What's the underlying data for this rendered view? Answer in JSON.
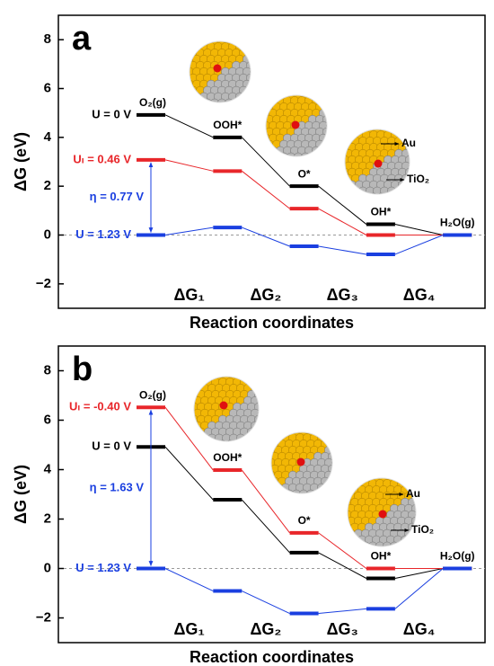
{
  "chart_data": [
    {
      "type": "step",
      "panel_label": "a",
      "ylabel": "ΔG (eV)",
      "xlabel": "Reaction coordinates",
      "ylim": [
        -3,
        9
      ],
      "yticks": [
        {
          "value": -2,
          "label": "−2"
        },
        0,
        2,
        4,
        6,
        8
      ],
      "states": [
        "O₂(g)",
        "OOH*",
        "O*",
        "OH*",
        "H₂O(g)"
      ],
      "steps": [
        "ΔG₁",
        "ΔG₂",
        "ΔG₃",
        "ΔG₄"
      ],
      "series": [
        {
          "name": "U = 0 V",
          "color": "#000000",
          "values": [
            4.92,
            4.0,
            2.0,
            0.44,
            0
          ]
        },
        {
          "name": "Uₗ = 0.46 V",
          "color": "#e8262a",
          "values": [
            3.08,
            2.62,
            1.08,
            0,
            0
          ]
        },
        {
          "name": "U = 1.23 V",
          "color": "#1a3fe0",
          "values": [
            0,
            0.31,
            -0.46,
            -0.79,
            0
          ]
        }
      ],
      "eta_label": "η = 0.77 V",
      "annotations": [
        "Au",
        "TiO₂"
      ]
    },
    {
      "type": "step",
      "panel_label": "b",
      "ylabel": "ΔG (eV)",
      "xlabel": "Reaction coordinates",
      "ylim": [
        -3,
        9
      ],
      "yticks": [
        {
          "value": -2,
          "label": "−2"
        },
        0,
        2,
        4,
        6,
        8
      ],
      "states": [
        "O₂(g)",
        "OOH*",
        "O*",
        "OH*",
        "H₂O(g)"
      ],
      "steps": [
        "ΔG₁",
        "ΔG₂",
        "ΔG₃",
        "ΔG₄"
      ],
      "series": [
        {
          "name": "U = 0 V",
          "color": "#000000",
          "values": [
            4.92,
            2.78,
            0.64,
            -0.4,
            0
          ]
        },
        {
          "name": "Uₗ = -0.40 V",
          "color": "#e8262a",
          "values": [
            6.52,
            3.98,
            1.44,
            0,
            0
          ]
        },
        {
          "name": "U = 1.23 V",
          "color": "#1a3fe0",
          "values": [
            0,
            -0.91,
            -1.82,
            -1.63,
            0
          ]
        }
      ],
      "eta_label": "η = 1.63 V",
      "annotations": [
        "Au",
        "TiO₂"
      ]
    }
  ]
}
